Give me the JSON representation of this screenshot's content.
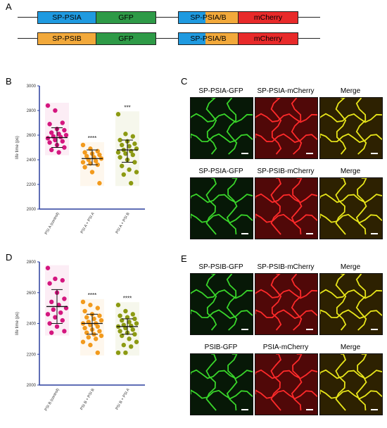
{
  "panel_letters": {
    "A": "A",
    "B": "B",
    "C": "C",
    "D": "D",
    "E": "E"
  },
  "constructs": {
    "row1": {
      "left_signal": "SP-PSIA",
      "left_fp": "GFP",
      "right_signal": "SP-PSIA/B",
      "right_fp": "mCherry"
    },
    "row2": {
      "left_signal": "SP-PSIB",
      "left_fp": "GFP",
      "right_signal": "SP-PSIA/B",
      "right_fp": "mCherry"
    }
  },
  "colors": {
    "psia_blue": "#1f9ae0",
    "psib_orange": "#f2a93b",
    "gfp_green": "#2e9a47",
    "mcherry_red": "#e82a2a",
    "magenta": "#d4167f",
    "orange_pts": "#f29a1c",
    "olive_pts": "#8c9a12",
    "axis_blue": "#2a3f9e"
  },
  "micro_C": {
    "row1": [
      "SP-PSIA-GFP",
      "SP-PSIA-mCherry",
      "Merge"
    ],
    "row2": [
      "SP-PSIA-GFP",
      "SP-PSIB-mCherry",
      "Merge"
    ]
  },
  "micro_E": {
    "row1": [
      "SP-PSIB-GFP",
      "SP-PSIB-mCherry",
      "Merge"
    ],
    "row2": [
      "PSIB-GFP",
      "PSIA-mCherry",
      "Merge"
    ]
  },
  "chart_data": [
    {
      "type": "scatter",
      "panel": "B",
      "ylabel": "life time (ps)",
      "ylim": [
        2000,
        3000
      ],
      "yticks": [
        2000,
        2200,
        2400,
        2600,
        2800,
        3000
      ],
      "categories": [
        "PSI A (control)",
        "PSI A + PSI A",
        "PSI A + PSI B"
      ],
      "significance": [
        "",
        "****",
        "***"
      ],
      "series": [
        {
          "color": "#d4167f",
          "mean": 2580,
          "sd_low": 2500,
          "sd_high": 2660,
          "values": [
            2840,
            2800,
            2700,
            2690,
            2650,
            2640,
            2620,
            2610,
            2600,
            2590,
            2585,
            2575,
            2560,
            2550,
            2540,
            2520,
            2500,
            2480,
            2460
          ]
        },
        {
          "color": "#f29a1c",
          "mean": 2410,
          "sd_low": 2360,
          "sd_high": 2480,
          "values": [
            2520,
            2490,
            2470,
            2460,
            2450,
            2440,
            2430,
            2420,
            2410,
            2400,
            2390,
            2380,
            2370,
            2360,
            2340,
            2300,
            2210
          ]
        },
        {
          "color": "#8c9a12",
          "mean": 2480,
          "sd_low": 2380,
          "sd_high": 2560,
          "values": [
            2770,
            2610,
            2590,
            2560,
            2550,
            2530,
            2520,
            2510,
            2490,
            2480,
            2470,
            2460,
            2450,
            2440,
            2420,
            2400,
            2380,
            2350,
            2320,
            2300,
            2280,
            2210
          ]
        }
      ]
    },
    {
      "type": "scatter",
      "panel": "D",
      "ylabel": "life time (ps)",
      "ylim": [
        2000,
        2800
      ],
      "yticks": [
        2000,
        2200,
        2400,
        2600,
        2800
      ],
      "categories": [
        "PSI B (control)",
        "PSI B + PSI B",
        "PSI B + PSI A"
      ],
      "significance": [
        "",
        "****",
        "****"
      ],
      "series": [
        {
          "color": "#d4167f",
          "mean": 2510,
          "sd_low": 2400,
          "sd_high": 2620,
          "values": [
            2760,
            2690,
            2680,
            2660,
            2600,
            2560,
            2540,
            2520,
            2500,
            2490,
            2470,
            2460,
            2440,
            2420,
            2400,
            2380,
            2350,
            2340
          ]
        },
        {
          "color": "#f29a1c",
          "mean": 2400,
          "sd_low": 2330,
          "sd_high": 2460,
          "values": [
            2540,
            2520,
            2500,
            2480,
            2460,
            2450,
            2440,
            2430,
            2420,
            2410,
            2400,
            2400,
            2390,
            2380,
            2370,
            2360,
            2350,
            2340,
            2330,
            2320,
            2310,
            2300,
            2280,
            2260,
            2210
          ]
        },
        {
          "color": "#8c9a12",
          "mean": 2380,
          "sd_low": 2330,
          "sd_high": 2430,
          "values": [
            2520,
            2480,
            2460,
            2450,
            2440,
            2430,
            2420,
            2410,
            2400,
            2390,
            2385,
            2380,
            2370,
            2360,
            2350,
            2340,
            2330,
            2320,
            2300,
            2280,
            2260,
            2250,
            2210,
            2210
          ]
        }
      ]
    }
  ]
}
